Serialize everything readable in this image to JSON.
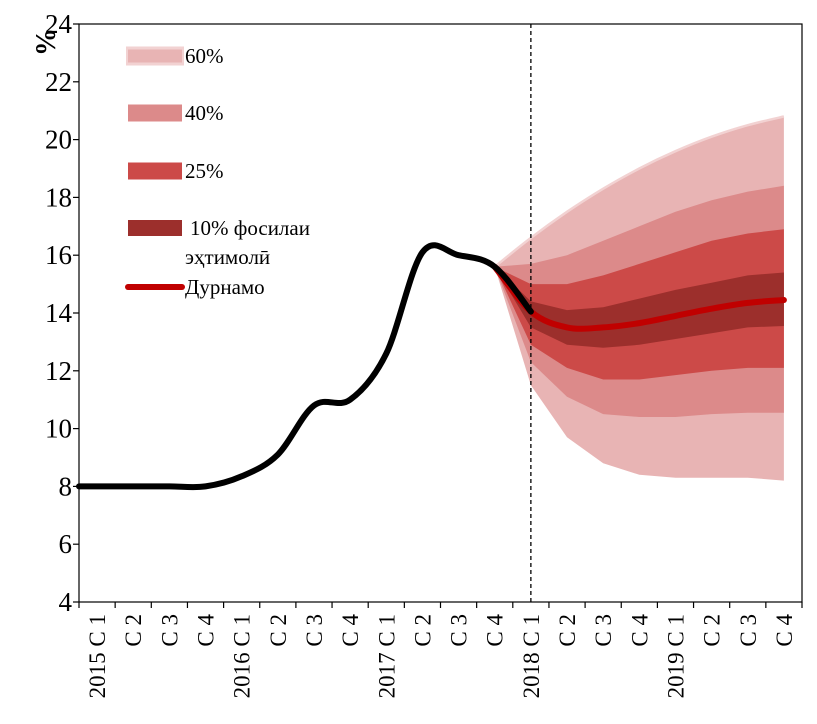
{
  "chart_data": {
    "type": "area",
    "ylabel": "%",
    "ylim": [
      4,
      24
    ],
    "yticks": [
      "4",
      "6",
      "8",
      "10",
      "12",
      "14",
      "16",
      "18",
      "20",
      "22",
      "24"
    ],
    "x_labels": [
      "2015 C 1",
      "C 2",
      "C 3",
      "C 4",
      "2016 C 1",
      "C 2",
      "C 3",
      "C 4",
      "2017 C 1",
      "C 2",
      "C 3",
      "C 4",
      "2018 C 1",
      "C 2",
      "C 3",
      "C 4",
      "2019 C 1",
      "C 2",
      "C 3",
      "C 4"
    ],
    "forecast_start": "2018 C 1",
    "colors": {
      "band60": "#e8b4b4",
      "band40": "#dc8a8a",
      "band25": "#cc4a48",
      "band10": "#9c2f2c",
      "forecast": "#c00000",
      "actual": "#000000",
      "band60_edge": "#f2d2d2"
    },
    "legend": [
      {
        "key": "band60",
        "label": "60%"
      },
      {
        "key": "band40",
        "label": "40%"
      },
      {
        "key": "band25",
        "label": "25%"
      },
      {
        "key": "band10",
        "label": "10% фосилаи",
        "label2": "эҳтимолӣ"
      },
      {
        "key": "forecast",
        "label": "Дурнамо"
      }
    ],
    "actual": {
      "x": [
        0,
        1,
        2,
        3,
        4,
        5,
        6,
        7,
        8,
        9,
        10,
        11,
        12
      ],
      "y": [
        8.0,
        8.0,
        8.0,
        8.0,
        8.35,
        9.1,
        10.8,
        11.0,
        12.6,
        16.1,
        16.0,
        15.6,
        14.05
      ]
    },
    "forecast": {
      "x": [
        11,
        12,
        13,
        14,
        15,
        16,
        17,
        18,
        19
      ],
      "y": [
        15.6,
        14.05,
        13.5,
        13.5,
        13.65,
        13.9,
        14.15,
        14.35,
        14.45
      ]
    },
    "bands": {
      "x": [
        11,
        12,
        13,
        14,
        15,
        16,
        17,
        18,
        19
      ],
      "p60_upper": [
        15.6,
        16.6,
        17.5,
        18.3,
        19.0,
        19.6,
        20.1,
        20.5,
        20.8
      ],
      "p60_lower": [
        15.6,
        11.5,
        9.7,
        8.8,
        8.4,
        8.3,
        8.3,
        8.3,
        8.2
      ],
      "p40_upper": [
        15.6,
        15.7,
        16.0,
        16.5,
        17.0,
        17.5,
        17.9,
        18.2,
        18.4
      ],
      "p40_lower": [
        15.6,
        12.3,
        11.1,
        10.5,
        10.4,
        10.4,
        10.5,
        10.55,
        10.55
      ],
      "p25_upper": [
        15.6,
        15.0,
        15.0,
        15.3,
        15.7,
        16.1,
        16.5,
        16.75,
        16.9
      ],
      "p25_lower": [
        15.6,
        12.9,
        12.1,
        11.7,
        11.7,
        11.85,
        12.0,
        12.1,
        12.1
      ],
      "p10_upper": [
        15.6,
        14.4,
        14.1,
        14.2,
        14.5,
        14.8,
        15.05,
        15.3,
        15.4
      ],
      "p10_lower": [
        15.6,
        13.5,
        12.9,
        12.8,
        12.9,
        13.1,
        13.3,
        13.5,
        13.55
      ]
    }
  }
}
